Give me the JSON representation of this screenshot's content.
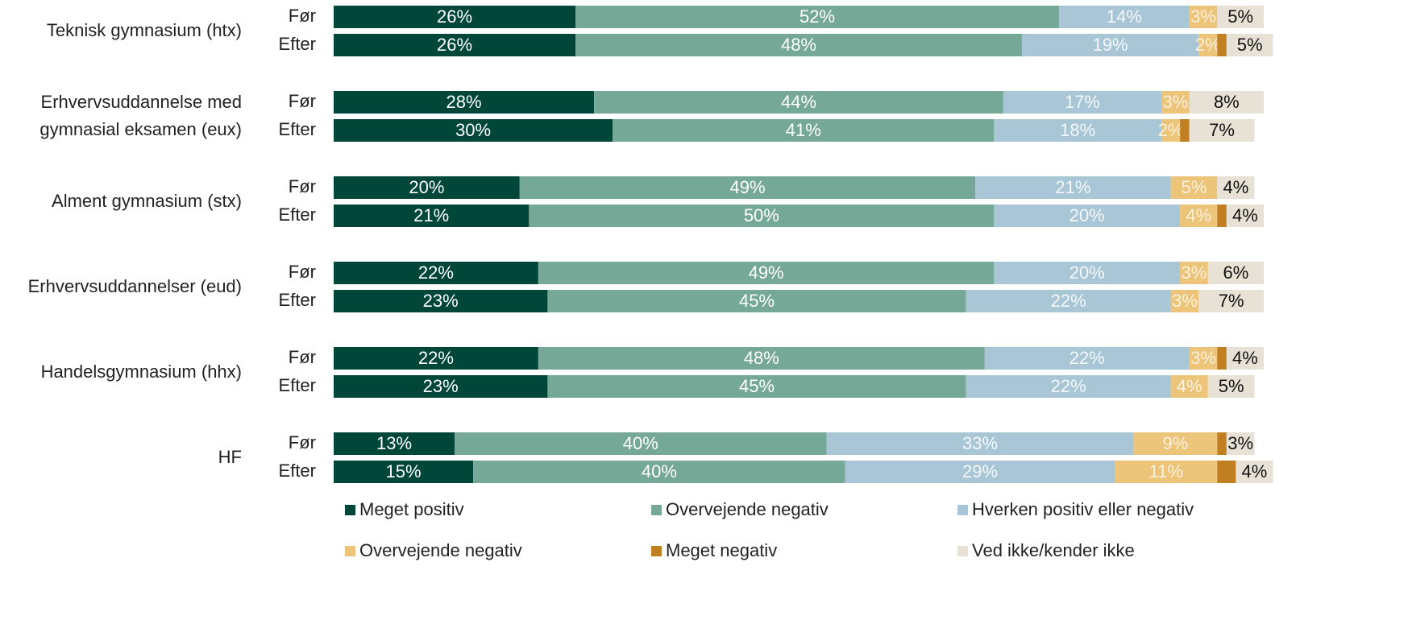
{
  "chart_data": {
    "type": "stacked-barh",
    "groups": [
      "Teknisk gymnasium (htx)",
      "Erhvervsuddannelse med\ngymnasial eksamen (eux)",
      "Alment gymnasium (stx)",
      "Erhvervsuddannelser (eud)",
      "Handelsgymnasium (hhx)",
      "HF"
    ],
    "categories": [
      "Før",
      "Efter",
      "Før",
      "Efter",
      "Før",
      "Efter",
      "Før",
      "Efter",
      "Før",
      "Efter",
      "Før",
      "Efter"
    ],
    "xlim": [
      0,
      100
    ],
    "series": [
      {
        "name": "Meget positiv",
        "color": "#00473a",
        "label_color": "#ffffff",
        "values": [
          26,
          26,
          28,
          30,
          20,
          21,
          22,
          23,
          22,
          23,
          13,
          15
        ],
        "value_labels": [
          "26%",
          "26%",
          "28%",
          "30%",
          "20%",
          "21%",
          "22%",
          "23%",
          "22%",
          "23%",
          "13%",
          "15%"
        ]
      },
      {
        "name": "Overvejende negativ",
        "color": "#76a898",
        "label_color": "#ffffff",
        "values": [
          52,
          48,
          44,
          41,
          49,
          50,
          49,
          45,
          48,
          45,
          40,
          40
        ],
        "value_labels": [
          "52%",
          "48%",
          "44%",
          "41%",
          "49%",
          "50%",
          "49%",
          "45%",
          "48%",
          "45%",
          "40%",
          "40%"
        ]
      },
      {
        "name": "Hverken positiv eller negativ",
        "color": "#a8c6d6",
        "label_color": "#f4f8fa",
        "values": [
          14,
          19,
          17,
          18,
          21,
          20,
          20,
          22,
          22,
          22,
          33,
          29
        ],
        "value_labels": [
          "14%",
          "19%",
          "17%",
          "18%",
          "21%",
          "20%",
          "20%",
          "22%",
          "22%",
          "22%",
          "33%",
          "29%"
        ]
      },
      {
        "name": "Overvejende negativ",
        "color": "#ecc47a",
        "label_color": "#fbf1dc",
        "values": [
          3,
          2,
          3,
          2,
          5,
          4,
          3,
          3,
          3,
          4,
          9,
          11
        ],
        "value_labels": [
          "3%",
          "2%",
          "3%",
          "2%",
          "5%",
          "4%",
          "3%",
          "3%",
          "3%",
          "4%",
          "9%",
          "11%"
        ]
      },
      {
        "name": "Meget negativ",
        "color": "#c07f21",
        "values": [
          0,
          1,
          0,
          1,
          0,
          1,
          0,
          0,
          1,
          0,
          1,
          2
        ]
      },
      {
        "name": "Ved ikke/kender ikke",
        "color": "#e8e1d5",
        "label_color": "#111111",
        "values": [
          5,
          5,
          8,
          7,
          4,
          4,
          6,
          7,
          4,
          5,
          3,
          4
        ],
        "value_labels": [
          "5%",
          "5%",
          "8%",
          "7%",
          "4%",
          "4%",
          "6%",
          "7%",
          "4%",
          "5%",
          "3%",
          "4%"
        ]
      }
    ]
  }
}
